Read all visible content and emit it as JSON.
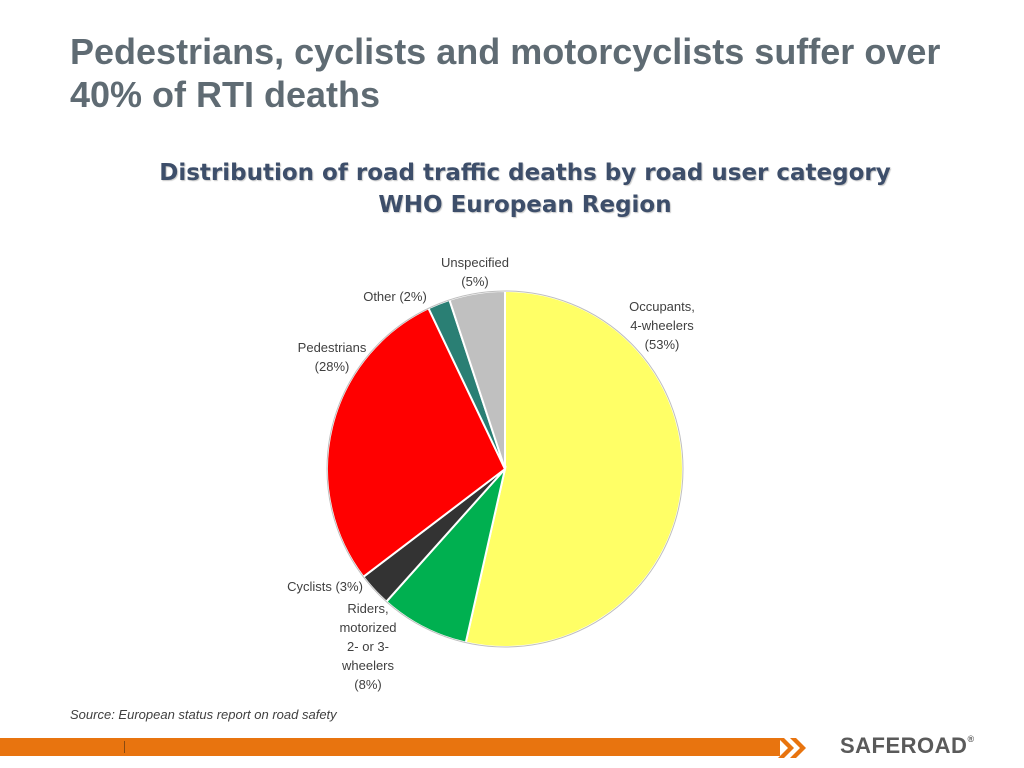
{
  "slide": {
    "title": "Pedestrians, cyclists and motorcyclists suffer over 40% of RTI deaths",
    "source": "Source: European status report on road safety",
    "logo": "SAFEROAD",
    "logo_mark": "®"
  },
  "chart_data": {
    "type": "pie",
    "title": "Distribution of road traffic deaths by road user category",
    "subtitle": "WHO European Region",
    "slices": [
      {
        "label_lines": [
          "Occupants,",
          "4-wheelers",
          "(53%)"
        ],
        "value": 53,
        "color": "#ffff66"
      },
      {
        "label_lines": [
          "Riders,",
          "motorized",
          "2- or 3-",
          "wheelers",
          "(8%)"
        ],
        "value": 8,
        "color": "#00b050"
      },
      {
        "label_lines": [
          "Cyclists (3%)"
        ],
        "value": 3,
        "color": "#333333"
      },
      {
        "label_lines": [
          "Pedestrians",
          "(28%)"
        ],
        "value": 28,
        "color": "#ff0000"
      },
      {
        "label_lines": [
          "Other (2%)"
        ],
        "value": 2,
        "color": "#2a7f74"
      },
      {
        "label_lines": [
          "Unspecified",
          "(5%)"
        ],
        "value": 5,
        "color": "#c0c0c0"
      }
    ],
    "legend": "none"
  },
  "footer": {
    "bar_color": "#e8740f"
  }
}
